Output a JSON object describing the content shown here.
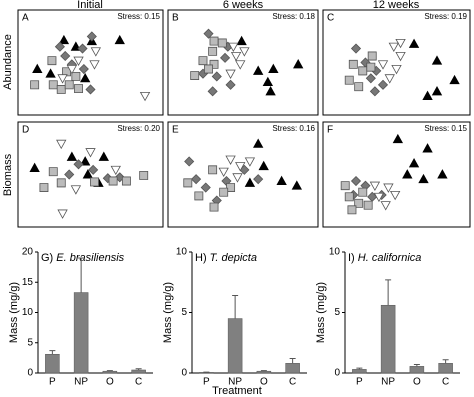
{
  "figure": {
    "column_titles": [
      "Initial",
      "6 weeks",
      "12 weeks"
    ],
    "row_labels": [
      "Abundance",
      "Biomass"
    ],
    "xlabel": "Treatment"
  },
  "chart_data": [
    {
      "type": "scatter",
      "label": "A",
      "stress": "Stress: 0.15",
      "series": [
        {
          "marker": "triangle-up",
          "color": "#000000",
          "x": [
            72,
            30,
            39,
            10,
            20,
            46,
            51
          ],
          "y": [
            74,
            74,
            67,
            43,
            38,
            33,
            73
          ]
        },
        {
          "marker": "diamond",
          "color": "#777777",
          "x": [
            51,
            44,
            31,
            36,
            45,
            50,
            27
          ],
          "y": [
            78,
            65,
            57,
            48,
            43,
            21,
            67
          ]
        },
        {
          "marker": "square",
          "color": "#bbbbbb",
          "x": [
            21,
            32,
            39,
            8,
            22,
            28,
            34,
            41
          ],
          "y": [
            52,
            40,
            35,
            26,
            26,
            21,
            26,
            22
          ]
        },
        {
          "marker": "triangle-down",
          "color": "#ffffff",
          "x": [
            54,
            41,
            53,
            36,
            91,
            29
          ],
          "y": [
            62,
            52,
            48,
            43,
            14,
            33
          ]
        }
      ]
    },
    {
      "type": "scatter",
      "label": "B",
      "stress": "Stress: 0.18",
      "series": [
        {
          "marker": "triangle-up",
          "color": "#000000",
          "x": [
            61,
            68,
            72,
            90,
            70,
            49
          ],
          "y": [
            41,
            29,
            43,
            48,
            19,
            73
          ]
        },
        {
          "marker": "diamond",
          "color": "#777777",
          "x": [
            25,
            39,
            37,
            31,
            21,
            28,
            41
          ],
          "y": [
            81,
            67,
            55,
            35,
            38,
            19,
            26
          ]
        },
        {
          "marker": "square",
          "color": "#bbbbbb",
          "x": [
            29,
            35,
            28,
            15,
            21,
            29,
            25
          ],
          "y": [
            73,
            71,
            62,
            36,
            52,
            48,
            43
          ]
        },
        {
          "marker": "triangle-down",
          "color": "#ffffff",
          "x": [
            45,
            48,
            41,
            51,
            43
          ],
          "y": [
            57,
            48,
            38,
            62,
            67
          ]
        }
      ]
    },
    {
      "type": "scatter",
      "label": "C",
      "stress": "Stress: 0.19",
      "series": [
        {
          "marker": "triangle-up",
          "color": "#000000",
          "x": [
            63,
            80,
            73,
            80,
            93
          ],
          "y": [
            70,
            52,
            14,
            19,
            31
          ]
        },
        {
          "marker": "diamond",
          "color": "#777777",
          "x": [
            20,
            35,
            31,
            34,
            40,
            27
          ],
          "y": [
            65,
            41,
            33,
            19,
            26,
            50
          ]
        },
        {
          "marker": "square",
          "color": "#bbbbbb",
          "x": [
            15,
            18,
            25,
            32,
            22,
            31
          ],
          "y": [
            31,
            48,
            41,
            57,
            24,
            45
          ]
        },
        {
          "marker": "triangle-down",
          "color": "#ffffff",
          "x": [
            53,
            48,
            53,
            40,
            50,
            45
          ],
          "y": [
            71,
            67,
            57,
            48,
            43,
            33
          ]
        }
      ]
    },
    {
      "type": "scatter",
      "label": "D",
      "stress": "Stress: 0.20",
      "series": [
        {
          "marker": "triangle-up",
          "color": "#000000",
          "x": [
            8,
            36,
            46,
            60,
            56,
            48
          ],
          "y": [
            57,
            69,
            64,
            69,
            41,
            50
          ]
        },
        {
          "marker": "diamond",
          "color": "#777777",
          "x": [
            41,
            52,
            63,
            34,
            72
          ],
          "y": [
            61,
            55,
            46,
            50,
            47
          ]
        },
        {
          "marker": "square",
          "color": "#bbbbbb",
          "x": [
            22,
            28,
            15,
            67,
            77,
            90,
            53
          ],
          "y": [
            53,
            41,
            36,
            43,
            43,
            49,
            42
          ]
        },
        {
          "marker": "triangle-down",
          "color": "#ffffff",
          "x": [
            28,
            50,
            29,
            69,
            39
          ],
          "y": [
            83,
            74,
            8,
            55,
            34
          ]
        }
      ]
    },
    {
      "type": "scatter",
      "label": "E",
      "stress": "Stress: 0.16",
      "series": [
        {
          "marker": "triangle-up",
          "color": "#000000",
          "x": [
            65,
            78,
            89,
            55,
            61
          ],
          "y": [
            59,
            43,
            38,
            41,
            83
          ]
        },
        {
          "marker": "diamond",
          "color": "#777777",
          "x": [
            11,
            16,
            23,
            38,
            61,
            31,
            51
          ],
          "y": [
            64,
            45,
            36,
            43,
            45,
            22,
            55
          ]
        },
        {
          "marker": "square",
          "color": "#bbbbbb",
          "x": [
            10,
            18,
            29,
            41,
            28,
            36
          ],
          "y": [
            41,
            27,
            15,
            36,
            55,
            31
          ]
        },
        {
          "marker": "triangle-down",
          "color": "#ffffff",
          "x": [
            41,
            48,
            46,
            36,
            55
          ],
          "y": [
            66,
            59,
            47,
            53,
            64
          ]
        }
      ]
    },
    {
      "type": "scatter",
      "label": "F",
      "stress": "Stress: 0.15",
      "series": [
        {
          "marker": "triangle-up",
          "color": "#000000",
          "x": [
            51,
            73,
            58,
            70,
            84,
            63
          ],
          "y": [
            88,
            78,
            50,
            45,
            50,
            62
          ]
        },
        {
          "marker": "diamond",
          "color": "#777777",
          "x": [
            20,
            27,
            32,
            39,
            18
          ],
          "y": [
            43,
            38,
            26,
            28,
            28
          ]
        },
        {
          "marker": "square",
          "color": "#bbbbbb",
          "x": [
            12,
            15,
            22,
            29,
            17,
            25
          ],
          "y": [
            38,
            26,
            19,
            17,
            12,
            31
          ]
        },
        {
          "marker": "triangle-down",
          "color": "#ffffff",
          "x": [
            34,
            42,
            37,
            49,
            44
          ],
          "y": [
            38,
            17,
            26,
            28,
            36
          ]
        }
      ]
    },
    {
      "type": "bar",
      "label": "G)",
      "title": "E. brasiliensis",
      "ylabel": "Mass (mg/g)",
      "categories": [
        "P",
        "NP",
        "O",
        "C"
      ],
      "values": [
        3.1,
        13.3,
        0.3,
        0.5
      ],
      "errors": [
        0.6,
        5.7,
        0.1,
        0.2
      ],
      "color": "#808080",
      "ylim": [
        0,
        20
      ],
      "yticks": [
        0,
        5,
        10,
        15,
        20
      ]
    },
    {
      "type": "bar",
      "label": "H)",
      "title": "T. depicta",
      "ylabel": "Mass (mg/g)",
      "categories": [
        "P",
        "NP",
        "O",
        "C"
      ],
      "values": [
        0.05,
        4.5,
        0.15,
        0.8
      ],
      "errors": [
        0.02,
        1.9,
        0.05,
        0.4
      ],
      "color": "#808080",
      "ylim": [
        0,
        10
      ],
      "yticks": [
        0,
        5,
        10
      ]
    },
    {
      "type": "bar",
      "label": "I)",
      "title": "H. californica",
      "ylabel": "Mass (mg/g)",
      "categories": [
        "P",
        "NP",
        "O",
        "C"
      ],
      "values": [
        0.3,
        5.6,
        0.55,
        0.8
      ],
      "errors": [
        0.1,
        2.1,
        0.15,
        0.3
      ],
      "color": "#808080",
      "ylim": [
        0,
        10
      ],
      "yticks": [
        0,
        5,
        10
      ]
    }
  ]
}
